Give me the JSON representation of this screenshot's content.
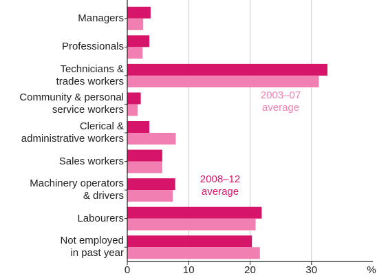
{
  "chart_data": {
    "type": "hbar",
    "categories": [
      "Managers",
      "Professionals",
      "Technicians &\ntrades workers",
      "Community & personal\nservice workers",
      "Clerical &\nadministrative workers",
      "Sales workers",
      "Machinery operators\n& drivers",
      "Labourers",
      "Not employed\nin past year"
    ],
    "series": [
      {
        "name": "2008–12\naverage",
        "color": "#d6156a",
        "values": [
          3.8,
          3.6,
          32.6,
          2.2,
          3.6,
          5.7,
          7.8,
          21.9,
          20.3
        ]
      },
      {
        "name": "2003–07\naverage",
        "color": "#f27fb2",
        "values": [
          2.6,
          2.5,
          31.2,
          1.7,
          7.9,
          5.7,
          7.4,
          20.9,
          21.6
        ]
      }
    ],
    "xlim": [
      0,
      40
    ],
    "xticks": [
      0,
      10,
      20,
      30
    ],
    "xlabel": "%",
    "grid": true
  }
}
